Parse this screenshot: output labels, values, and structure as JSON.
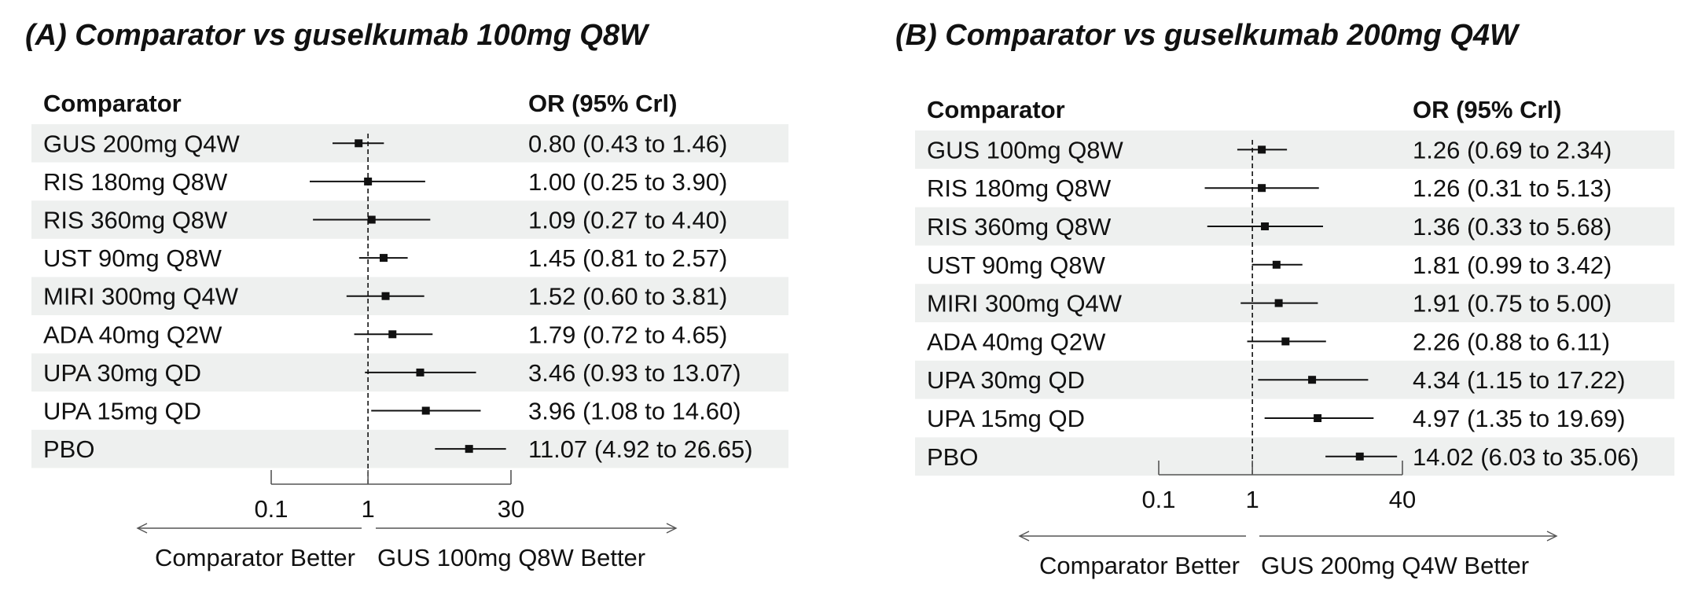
{
  "chart_data": [
    {
      "type": "forest",
      "panel_title": "(A) Comparator vs guselkumab 100mg Q8W",
      "col_header_left": "Comparator",
      "col_header_right": "OR (95% Crl)",
      "scale": "log",
      "xlim": [
        0.1,
        30
      ],
      "x_ticks": [
        "0.1",
        "1",
        "30"
      ],
      "reference_line": 1,
      "arrow_left_label": "Comparator Better",
      "arrow_right_label": "GUS 100mg Q8W Better",
      "rows": [
        {
          "label": "GUS 200mg Q4W",
          "or": 0.8,
          "lo": 0.43,
          "hi": 1.46,
          "text": "0.80 (0.43 to 1.46)"
        },
        {
          "label": "RIS 180mg Q8W",
          "or": 1.0,
          "lo": 0.25,
          "hi": 3.9,
          "text": "1.00 (0.25 to 3.90)"
        },
        {
          "label": "RIS 360mg Q8W",
          "or": 1.09,
          "lo": 0.27,
          "hi": 4.4,
          "text": "1.09 (0.27 to 4.40)"
        },
        {
          "label": "UST 90mg Q8W",
          "or": 1.45,
          "lo": 0.81,
          "hi": 2.57,
          "text": "1.45 (0.81 to 2.57)"
        },
        {
          "label": "MIRI 300mg Q4W",
          "or": 1.52,
          "lo": 0.6,
          "hi": 3.81,
          "text": "1.52 (0.60 to 3.81)"
        },
        {
          "label": "ADA 40mg Q2W",
          "or": 1.79,
          "lo": 0.72,
          "hi": 4.65,
          "text": "1.79 (0.72 to 4.65)"
        },
        {
          "label": "UPA 30mg QD",
          "or": 3.46,
          "lo": 0.93,
          "hi": 13.07,
          "text": "3.46 (0.93 to 13.07)"
        },
        {
          "label": "UPA 15mg QD",
          "or": 3.96,
          "lo": 1.08,
          "hi": 14.6,
          "text": "3.96 (1.08 to 14.60)"
        },
        {
          "label": "PBO",
          "or": 11.07,
          "lo": 4.92,
          "hi": 26.65,
          "text": "11.07 (4.92 to 26.65)"
        }
      ]
    },
    {
      "type": "forest",
      "panel_title": "(B) Comparator vs guselkumab 200mg Q4W",
      "col_header_left": "Comparator",
      "col_header_right": "OR (95% Crl)",
      "scale": "log",
      "xlim": [
        0.1,
        40
      ],
      "x_ticks": [
        "0.1",
        "1",
        "40"
      ],
      "reference_line": 1,
      "arrow_left_label": "Comparator Better",
      "arrow_right_label": "GUS 200mg Q4W Better",
      "rows": [
        {
          "label": "GUS 100mg Q8W",
          "or": 1.26,
          "lo": 0.69,
          "hi": 2.34,
          "text": "1.26 (0.69 to 2.34)"
        },
        {
          "label": "RIS 180mg Q8W",
          "or": 1.26,
          "lo": 0.31,
          "hi": 5.13,
          "text": "1.26 (0.31 to 5.13)"
        },
        {
          "label": "RIS 360mg Q8W",
          "or": 1.36,
          "lo": 0.33,
          "hi": 5.68,
          "text": "1.36 (0.33 to 5.68)"
        },
        {
          "label": "UST 90mg Q8W",
          "or": 1.81,
          "lo": 0.99,
          "hi": 3.42,
          "text": "1.81 (0.99 to 3.42)"
        },
        {
          "label": "MIRI 300mg Q4W",
          "or": 1.91,
          "lo": 0.75,
          "hi": 5.0,
          "text": "1.91 (0.75 to 5.00)"
        },
        {
          "label": "ADA 40mg Q2W",
          "or": 2.26,
          "lo": 0.88,
          "hi": 6.11,
          "text": "2.26 (0.88 to 6.11)"
        },
        {
          "label": "UPA 30mg QD",
          "or": 4.34,
          "lo": 1.15,
          "hi": 17.22,
          "text": "4.34 (1.15 to 17.22)"
        },
        {
          "label": "UPA 15mg QD",
          "or": 4.97,
          "lo": 1.35,
          "hi": 19.69,
          "text": "4.97 (1.35 to 19.69)"
        },
        {
          "label": "PBO",
          "or": 14.02,
          "lo": 6.03,
          "hi": 35.06,
          "text": "14.02 (6.03 to 35.06)"
        }
      ]
    }
  ],
  "colors": {
    "stripe": "#eef0ef",
    "ink": "#111111",
    "axis": "#555555"
  }
}
